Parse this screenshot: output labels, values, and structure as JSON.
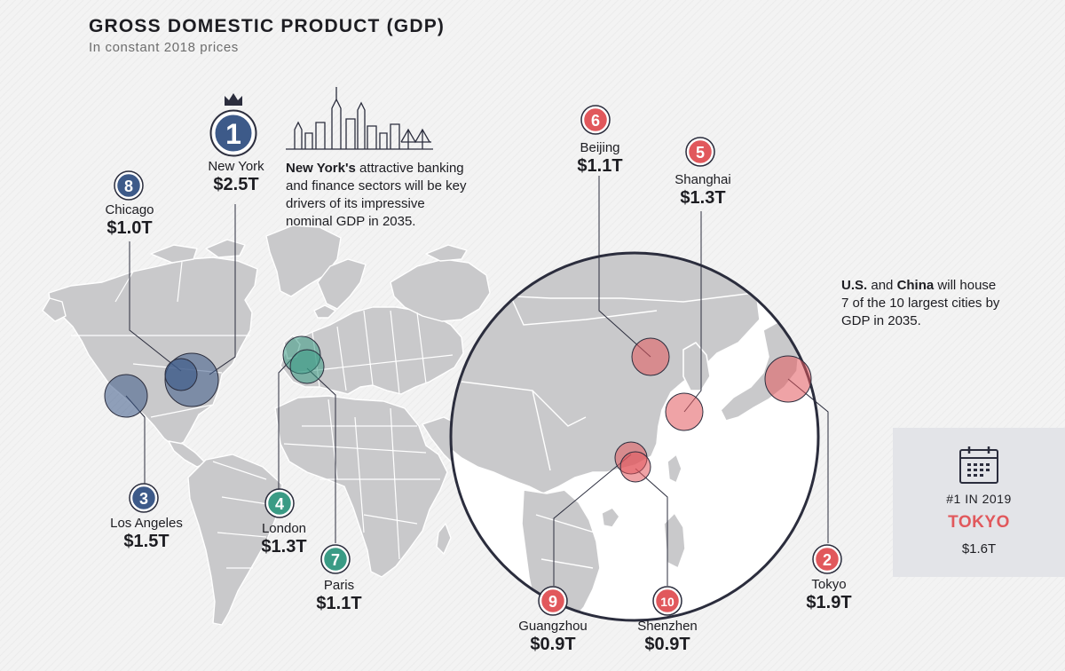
{
  "header": {
    "title": "GROSS DOMESTIC PRODUCT (GDP)",
    "subtitle": "In constant 2018 prices"
  },
  "colors": {
    "us": "#3d5a89",
    "europe": "#3a9b85",
    "asia": "#e1585c",
    "land": "#c9c9cb",
    "circle_outline": "#2b2d3d"
  },
  "cities": [
    {
      "rank": "1",
      "name": "New York",
      "gdp": "$2.5T",
      "region": "us"
    },
    {
      "rank": "2",
      "name": "Tokyo",
      "gdp": "$1.9T",
      "region": "asia"
    },
    {
      "rank": "3",
      "name": "Los Angeles",
      "gdp": "$1.5T",
      "region": "us"
    },
    {
      "rank": "4",
      "name": "London",
      "gdp": "$1.3T",
      "region": "europe"
    },
    {
      "rank": "5",
      "name": "Shanghai",
      "gdp": "$1.3T",
      "region": "asia"
    },
    {
      "rank": "6",
      "name": "Beijing",
      "gdp": "$1.1T",
      "region": "asia"
    },
    {
      "rank": "7",
      "name": "Paris",
      "gdp": "$1.1T",
      "region": "europe"
    },
    {
      "rank": "8",
      "name": "Chicago",
      "gdp": "$1.0T",
      "region": "us"
    },
    {
      "rank": "9",
      "name": "Guangzhou",
      "gdp": "$0.9T",
      "region": "asia"
    },
    {
      "rank": "10",
      "name": "Shenzhen",
      "gdp": "$0.9T",
      "region": "asia"
    }
  ],
  "notes": {
    "newyork": {
      "bold": "New York's",
      "text": " attractive banking and finance sectors will be key drivers of its impressive nominal GDP in 2035."
    },
    "china": {
      "bold1": "U.S.",
      "mid": " and ",
      "bold2": "China",
      "text": " will house 7 of the 10 largest cities by GDP in 2035."
    }
  },
  "icons": {
    "crown": "crown-icon",
    "skyline": "new-york-skyline-icon",
    "calendar": "calendar-icon"
  },
  "card": {
    "rank_label": "#1 IN 2019",
    "city": "TOKYO",
    "gdp": "$1.6T"
  }
}
